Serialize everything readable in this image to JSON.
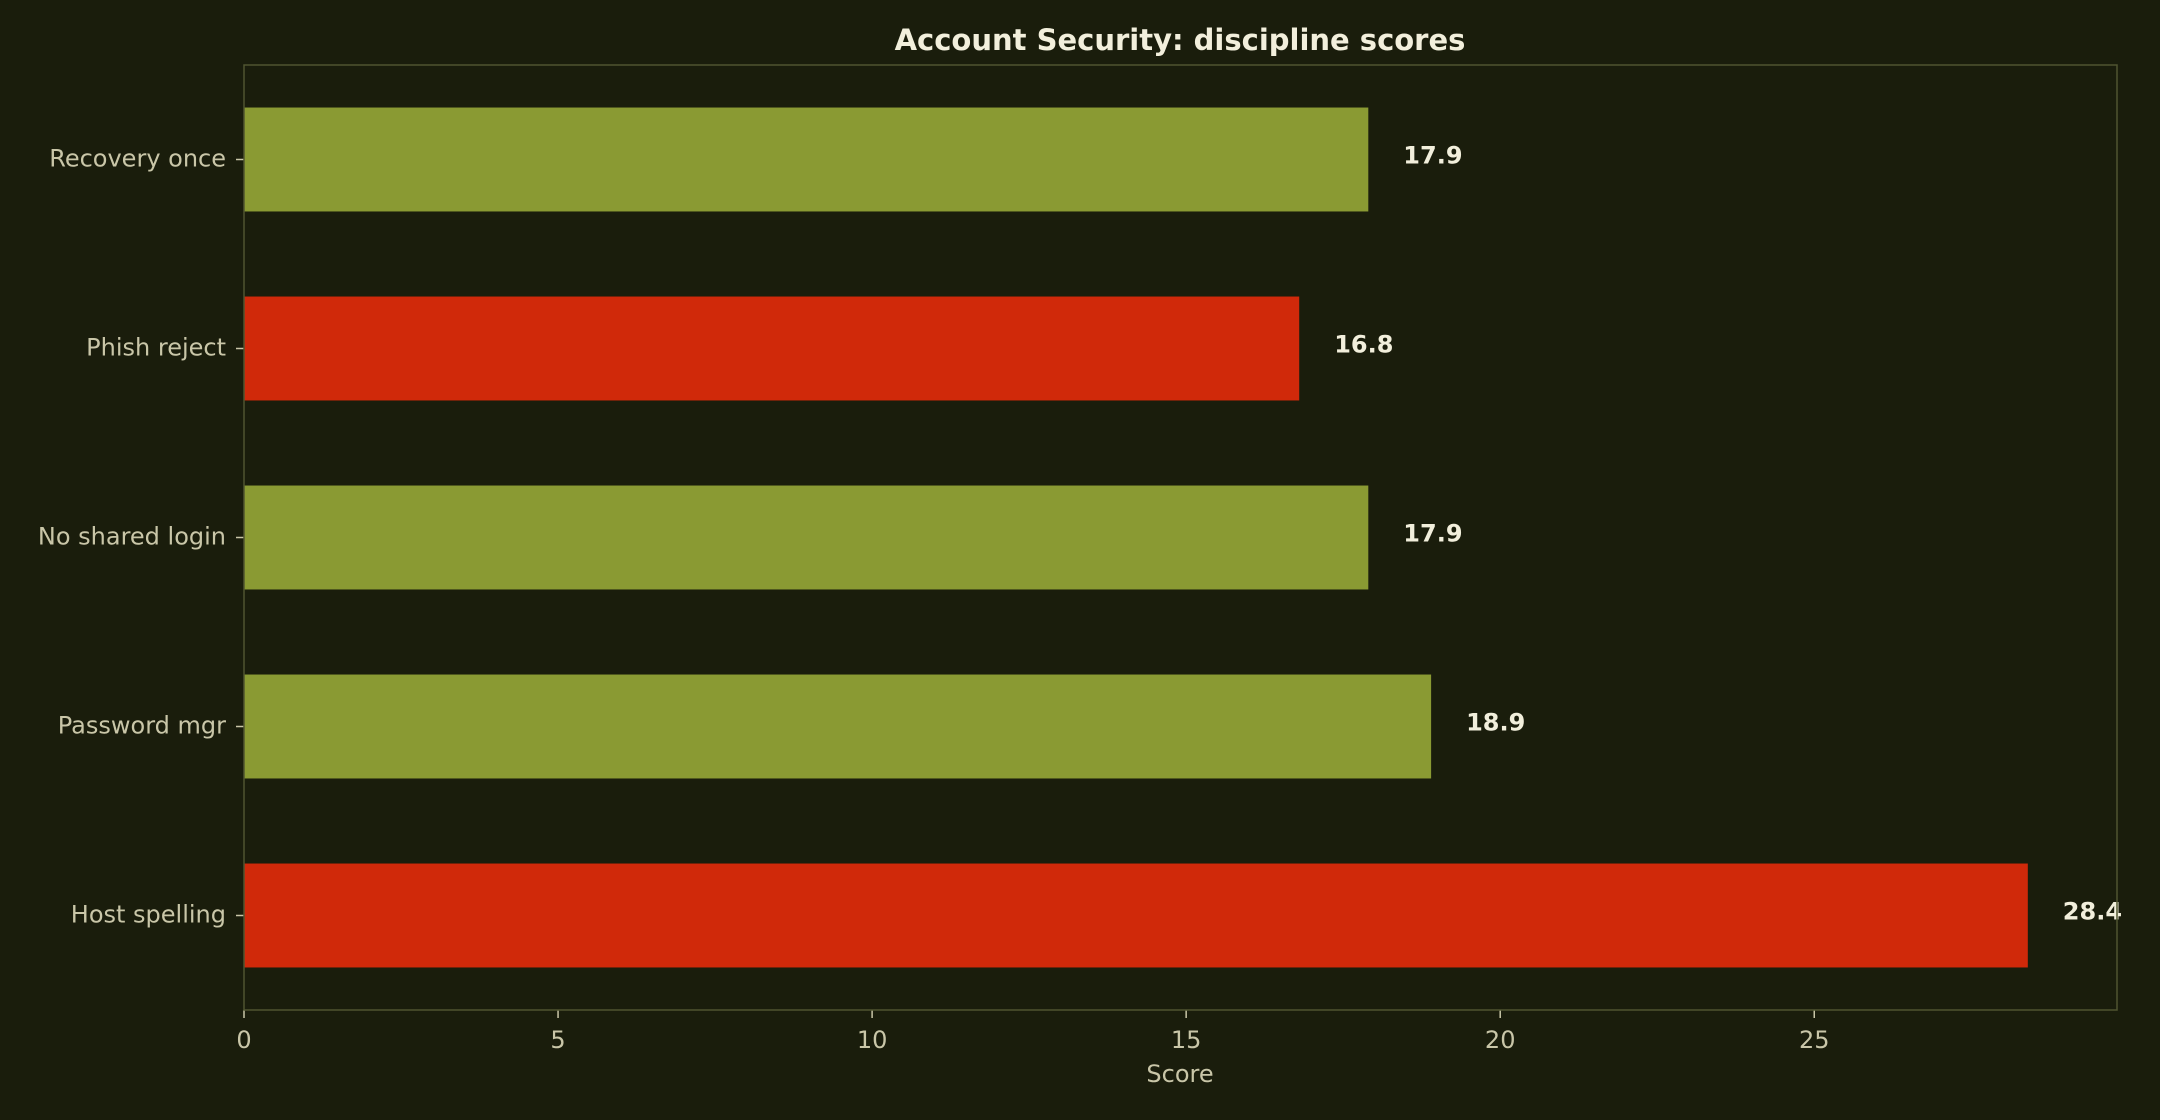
{
  "chart_data": {
    "type": "bar",
    "orientation": "horizontal",
    "title": "Account Security: discipline scores",
    "xlabel": "Score",
    "ylabel": "",
    "categories": [
      "Host spelling",
      "Password mgr",
      "No shared login",
      "Phish reject",
      "Recovery once"
    ],
    "values": [
      28.4,
      18.9,
      17.9,
      16.8,
      17.9
    ],
    "value_labels": [
      "28.4",
      "18.9",
      "17.9",
      "16.8",
      "17.9"
    ],
    "bar_colors": [
      "#d0290a",
      "#8a9a33",
      "#8a9a33",
      "#d0290a",
      "#8a9a33"
    ],
    "xlim": [
      0,
      29.82
    ],
    "xticks": [
      0,
      5,
      10,
      15,
      20,
      25
    ],
    "xtick_labels": [
      "0",
      "5",
      "10",
      "15",
      "20",
      "25"
    ],
    "grid": false,
    "legend": "none",
    "colors": {
      "background": "#1a1d0c",
      "plot_background": "#1a1d0c",
      "frame": "#4f5530",
      "text": "#c9c6a8",
      "title": "#f2efdc",
      "positive_bar": "#8a9a33",
      "negative_bar": "#d0290a"
    }
  }
}
